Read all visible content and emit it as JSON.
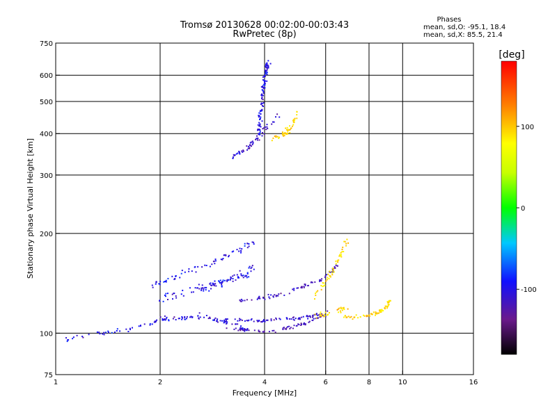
{
  "chart_data": {
    "type": "scatter",
    "title": "Tromsø 20130628 00:02:00-00:03:43",
    "subtitle": "RwPretec (8p)",
    "xlabel": "Frequency [MHz]",
    "ylabel": "Stationary phase Virtual Height [km]",
    "x_scale": "log",
    "y_scale": "log",
    "xlim": [
      1,
      16
    ],
    "ylim": [
      75,
      750
    ],
    "x_ticks": [
      1,
      2,
      4,
      6,
      8,
      10,
      16
    ],
    "x_tick_labels": [
      "1",
      "2",
      "4",
      "6",
      "8",
      "10",
      "16"
    ],
    "x_grid": [
      2,
      4,
      6,
      8,
      10
    ],
    "y_ticks": [
      75,
      100,
      200,
      300,
      400,
      500,
      600,
      750
    ],
    "y_tick_labels": [
      "75",
      "100",
      "200",
      "300",
      "400",
      "500",
      "600",
      "750"
    ],
    "y_grid": [
      100,
      200,
      300,
      400,
      500,
      600
    ],
    "grid": true,
    "stats_title": "Phases",
    "stats": [
      "mean, sd,O: -95.1, 18.4",
      "mean, sd,X: 85.5, 21.4"
    ],
    "colorbar": {
      "label": "[deg]",
      "range": [
        -180,
        180
      ],
      "ticks": [
        100,
        0,
        -100
      ],
      "tick_labels": [
        "100",
        "0",
        "-100"
      ]
    },
    "traces": [
      {
        "f": [
          1.0,
          1.3,
          1.7,
          2.1,
          2.6,
          3.2,
          3.6
        ],
        "h": [
          95,
          99,
          104,
          110,
          113,
          107,
          101
        ],
        "phase": -100,
        "spread": 0.015,
        "n": 110
      },
      {
        "f": [
          2.0,
          2.6,
          3.2,
          3.8,
          4.3,
          4.8,
          5.3,
          5.8
        ],
        "h": [
          112,
          111,
          110,
          109,
          110,
          111,
          112,
          114
        ],
        "phase": -110,
        "spread": 0.012,
        "n": 90
      },
      {
        "f": [
          3.1,
          3.6,
          4.1,
          4.6,
          5.1,
          5.6,
          6.1
        ],
        "h": [
          104,
          102,
          101,
          103,
          106,
          110,
          115
        ],
        "phase": -120,
        "spread": 0.01,
        "n": 70
      },
      {
        "f": [
          3.4,
          4.0,
          4.6,
          5.2,
          5.8,
          6.2,
          6.5
        ],
        "h": [
          125,
          128,
          132,
          138,
          145,
          152,
          160
        ],
        "phase": -115,
        "spread": 0.012,
        "n": 80
      },
      {
        "f": [
          1.9,
          2.2,
          2.6,
          3.0,
          3.4,
          3.7
        ],
        "h": [
          140,
          148,
          158,
          168,
          178,
          188
        ],
        "phase": -100,
        "spread": 0.02,
        "n": 70
      },
      {
        "f": [
          1.9,
          2.4,
          2.9,
          3.3,
          3.8
        ],
        "h": [
          125,
          132,
          140,
          148,
          160
        ],
        "phase": -105,
        "spread": 0.025,
        "n": 60
      },
      {
        "f": [
          2.0,
          2.6,
          3.1,
          3.6
        ],
        "h": [
          130,
          138,
          145,
          150
        ],
        "phase": -95,
        "spread": 0.02,
        "n": 40
      },
      {
        "f": [
          3.2,
          3.5,
          3.7,
          3.9,
          4.1,
          4.4
        ],
        "h": [
          340,
          355,
          375,
          395,
          420,
          450
        ],
        "phase": -110,
        "spread": 0.02,
        "n": 60
      },
      {
        "f": [
          3.85,
          3.9,
          3.95,
          4.0,
          4.05,
          4.1
        ],
        "h": [
          400,
          460,
          520,
          580,
          630,
          650
        ],
        "phase": -100,
        "spread": 0.02,
        "n": 110
      },
      {
        "f": [
          4.2,
          4.5,
          4.8,
          5.0
        ],
        "h": [
          385,
          395,
          420,
          470
        ],
        "phase": 95,
        "spread": 0.02,
        "n": 50
      },
      {
        "f": [
          5.6,
          5.9,
          6.2,
          6.6,
          6.9
        ],
        "h": [
          130,
          140,
          150,
          170,
          190
        ],
        "phase": 90,
        "spread": 0.02,
        "n": 50
      },
      {
        "f": [
          6.8,
          7.3,
          7.8,
          8.3,
          8.8,
          9.2
        ],
        "h": [
          112,
          112,
          112,
          114,
          118,
          125
        ],
        "phase": 95,
        "spread": 0.012,
        "n": 70
      },
      {
        "f": [
          5.5,
          6.0,
          6.5,
          6.9
        ],
        "h": [
          112,
          114,
          116,
          120
        ],
        "phase": 95,
        "spread": 0.02,
        "n": 30
      }
    ]
  }
}
